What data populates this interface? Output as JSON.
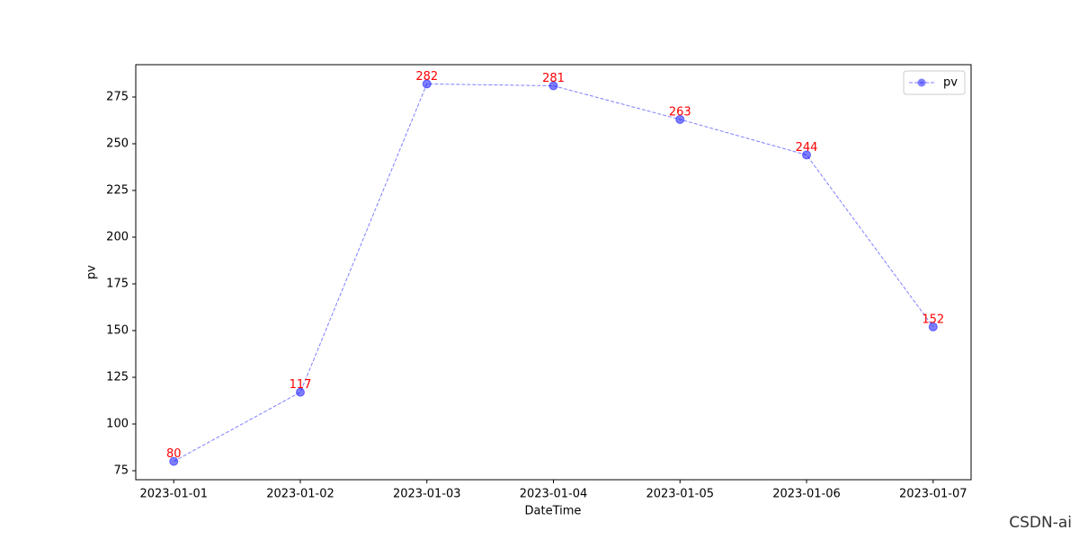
{
  "chart_data": {
    "type": "line",
    "categories": [
      "2023-01-01",
      "2023-01-02",
      "2023-01-03",
      "2023-01-04",
      "2023-01-05",
      "2023-01-06",
      "2023-01-07"
    ],
    "series": [
      {
        "name": "pv",
        "color": "#0000ff",
        "values": [
          80,
          117,
          282,
          281,
          263,
          244,
          152
        ]
      }
    ],
    "xlabel": "DateTime",
    "ylabel": "pv",
    "ylim": [
      70.2,
      292.3
    ],
    "yticks": [
      75,
      100,
      125,
      150,
      175,
      200,
      225,
      250,
      275
    ],
    "legend": "upper right",
    "label_color": "#ff0000",
    "grid": false,
    "watermark": "CSDN-ai"
  }
}
